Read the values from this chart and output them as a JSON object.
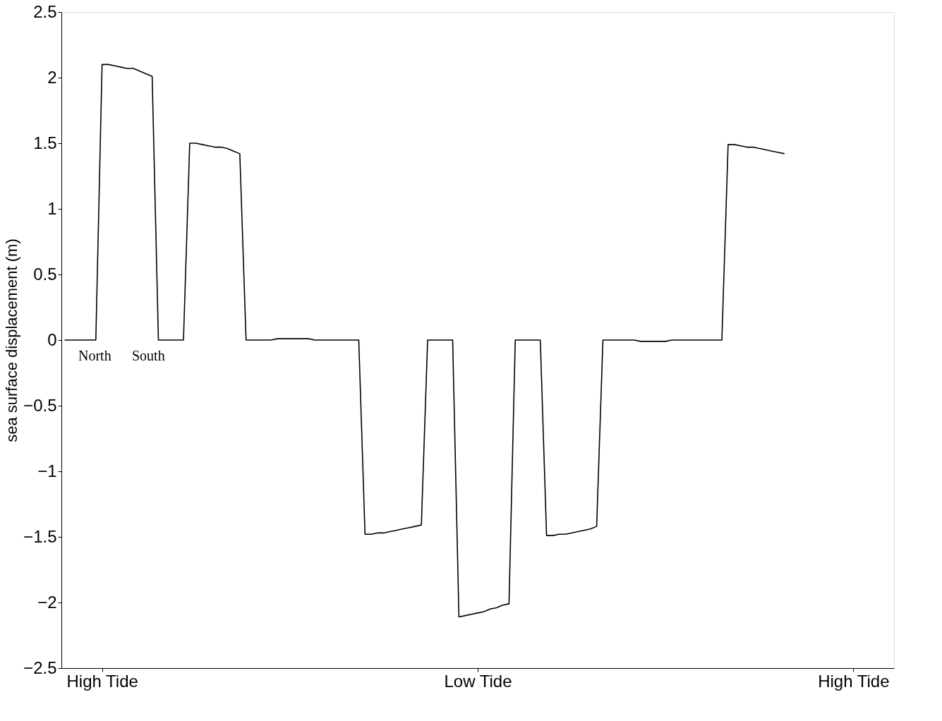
{
  "chart_data": {
    "type": "line",
    "ylabel": "sea surface displacement (m)",
    "categories": [
      null,
      null,
      null,
      null,
      null,
      null,
      "High Tide",
      null,
      null,
      null,
      null,
      null,
      null,
      null,
      null,
      null,
      null,
      null,
      null,
      null,
      null,
      null,
      null,
      null,
      null,
      null,
      null,
      null,
      null,
      null,
      null,
      null,
      null,
      null,
      null,
      null,
      null,
      null,
      null,
      null,
      null,
      null,
      null,
      null,
      null,
      null,
      null,
      null,
      null,
      null,
      null,
      null,
      null,
      null,
      null,
      null,
      null,
      null,
      null,
      null,
      null,
      null,
      null,
      null,
      null,
      null,
      "Low Tide",
      null,
      null,
      null,
      null,
      null,
      null,
      null,
      null,
      null,
      null,
      null,
      null,
      null,
      null,
      null,
      null,
      null,
      null,
      null,
      null,
      null,
      null,
      null,
      null,
      null,
      null,
      null,
      null,
      null,
      null,
      null,
      null,
      null,
      null,
      null,
      null,
      null,
      null,
      null,
      null,
      null,
      null,
      null,
      null,
      null,
      null,
      null,
      null,
      null,
      null,
      null,
      null,
      null,
      null,
      null,
      null,
      null,
      null,
      null,
      "High Tide",
      null,
      null,
      null,
      null,
      null,
      null
    ],
    "series": [
      {
        "color": "#000000",
        "values": [
          0,
          0,
          0,
          0,
          0,
          0,
          2.1,
          2.1,
          2.09,
          2.08,
          2.07,
          2.07,
          2.05,
          2.03,
          2.01,
          0,
          0,
          0,
          0,
          0,
          1.5,
          1.5,
          1.49,
          1.48,
          1.47,
          1.47,
          1.46,
          1.44,
          1.42,
          0,
          0,
          0,
          0,
          0,
          0.01,
          0.01,
          0.01,
          0.01,
          0.01,
          0.01,
          0,
          0,
          0,
          0,
          0,
          0,
          0,
          0,
          -1.48,
          -1.48,
          -1.47,
          -1.47,
          -1.46,
          -1.45,
          -1.44,
          -1.43,
          -1.42,
          -1.41,
          0,
          0,
          0,
          0,
          0,
          -2.11,
          -2.1,
          -2.09,
          -2.08,
          -2.07,
          -2.05,
          -2.04,
          -2.02,
          -2.01,
          0,
          0,
          0,
          0,
          0,
          -1.49,
          -1.49,
          -1.48,
          -1.48,
          -1.47,
          -1.46,
          -1.45,
          -1.44,
          -1.42,
          0,
          0,
          0,
          0,
          0,
          0,
          -0.01,
          -0.01,
          -0.01,
          -0.01,
          -0.01,
          0,
          0,
          0,
          0,
          0,
          0,
          0,
          0,
          0,
          1.49,
          1.49,
          1.48,
          1.47,
          1.47,
          1.46,
          1.45,
          1.44,
          1.43,
          1.42,
          null,
          null,
          null,
          null,
          null,
          null,
          null,
          null,
          null,
          null,
          null,
          null,
          null,
          null,
          null,
          null,
          null
        ]
      }
    ],
    "ylim": [
      -2.5,
      2.5
    ],
    "yticks": [
      {
        "value": -2.5,
        "label": "−2.5"
      },
      {
        "value": -2,
        "label": "−2"
      },
      {
        "value": -1.5,
        "label": "−1.5"
      },
      {
        "value": -1,
        "label": "−1"
      },
      {
        "value": -0.5,
        "label": "−0.5"
      },
      0,
      0.5,
      1,
      1.5,
      2,
      2.5
    ],
    "annotations": [
      "North",
      "South"
    ],
    "grid": false,
    "marker": "none",
    "line_style": "solid"
  }
}
